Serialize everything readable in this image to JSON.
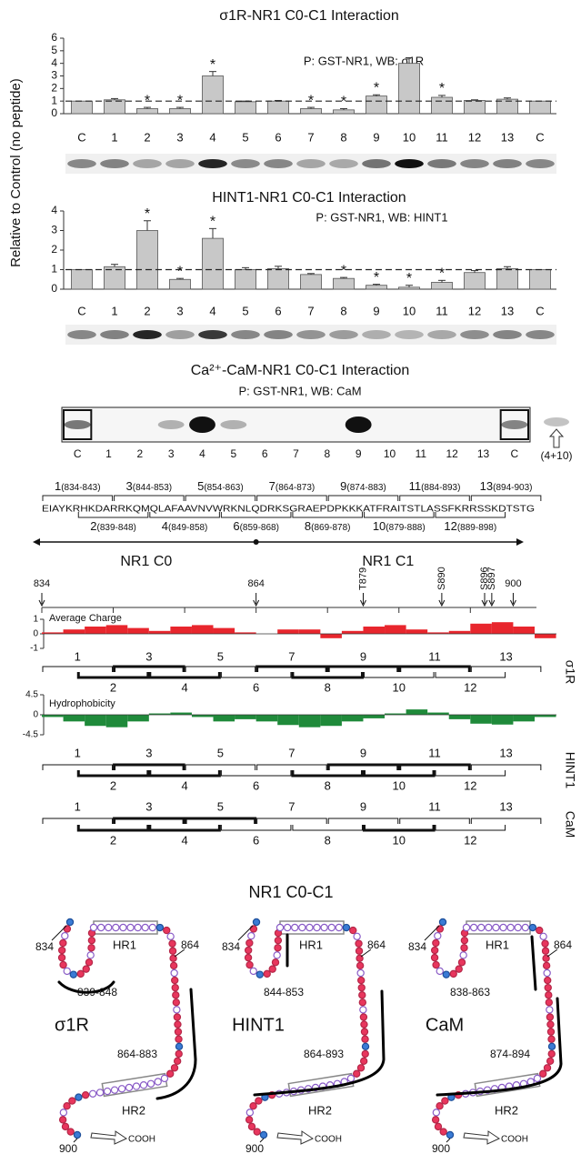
{
  "chart_data": [
    {
      "type": "bar",
      "title": "σ1R-NR1 C0-C1 Interaction",
      "subtitle": "P: GST-NR1, WB: σ1R",
      "ylabel": "Relative to Control (no peptide)",
      "categories": [
        "C",
        "1",
        "2",
        "3",
        "4",
        "5",
        "6",
        "7",
        "8",
        "9",
        "10",
        "11",
        "12",
        "13",
        "C"
      ],
      "values": [
        1,
        1.1,
        0.4,
        0.4,
        3.0,
        0.95,
        1.0,
        0.4,
        0.3,
        1.4,
        4.0,
        1.3,
        1.05,
        1.15,
        1
      ],
      "errors": [
        0,
        0.1,
        0.1,
        0.1,
        0.35,
        0.05,
        0.05,
        0.1,
        0.1,
        0.1,
        0.45,
        0.15,
        0.05,
        0.1,
        0
      ],
      "significant": [
        false,
        false,
        true,
        true,
        true,
        false,
        false,
        true,
        true,
        true,
        false,
        true,
        false,
        false,
        false
      ],
      "sig_mark": "*",
      "reference_line": 1,
      "color": "#c8c8c8",
      "ylim": [
        0,
        6
      ],
      "yticks": [
        0,
        1,
        2,
        3,
        4,
        5,
        6
      ]
    },
    {
      "type": "bar",
      "title": "HINT1-NR1 C0-C1 Interaction",
      "subtitle": "P: GST-NR1, WB: HINT1",
      "categories": [
        "C",
        "1",
        "2",
        "3",
        "4",
        "5",
        "6",
        "7",
        "8",
        "9",
        "10",
        "11",
        "12",
        "13",
        "C"
      ],
      "values": [
        1,
        1.15,
        3.0,
        0.5,
        2.6,
        1.0,
        1.05,
        0.75,
        0.55,
        0.2,
        0.1,
        0.35,
        0.85,
        1.05,
        1
      ],
      "errors": [
        0,
        0.12,
        0.5,
        0.05,
        0.5,
        0.1,
        0.12,
        0.05,
        0.05,
        0.05,
        0.1,
        0.1,
        0.1,
        0.1,
        0
      ],
      "significant": [
        false,
        false,
        true,
        true,
        true,
        false,
        false,
        false,
        true,
        true,
        true,
        true,
        false,
        false,
        false
      ],
      "sig_mark": "*",
      "reference_line": 1,
      "color": "#c8c8c8",
      "ylim": [
        0,
        4
      ],
      "yticks": [
        0,
        1,
        2,
        3,
        4
      ]
    },
    {
      "type": "bar",
      "title": "Average Charge",
      "x": [
        834,
        837,
        840,
        843,
        846,
        849,
        852,
        855,
        858,
        861,
        864,
        867,
        870,
        873,
        876,
        879,
        882,
        885,
        888,
        891,
        894,
        897,
        900,
        903
      ],
      "values": [
        0.1,
        0.3,
        0.5,
        0.6,
        0.4,
        0.2,
        0.5,
        0.6,
        0.4,
        0.1,
        0,
        0.3,
        0.3,
        -0.3,
        0.2,
        0.5,
        0.6,
        0.3,
        0.1,
        0.2,
        0.7,
        0.8,
        0.5,
        -0.3
      ],
      "color": "#e8262d",
      "xlim": [
        834,
        903
      ],
      "xticks": [
        834,
        864,
        {
          "value": 879,
          "label": "T879"
        },
        {
          "value": 890,
          "label": "S890"
        },
        {
          "value": 896,
          "label": "S896"
        },
        {
          "value": 897,
          "label": "S897"
        },
        900
      ],
      "ylim": [
        -1,
        1
      ],
      "yticks": [
        -1,
        0,
        1
      ]
    },
    {
      "type": "bar",
      "title": "Hydrophobicity",
      "x": [
        834,
        837,
        840,
        843,
        846,
        849,
        852,
        855,
        858,
        861,
        864,
        867,
        870,
        873,
        876,
        879,
        882,
        885,
        888,
        891,
        894,
        897,
        900,
        903
      ],
      "values": [
        -0.5,
        -1.5,
        -2.5,
        -2.8,
        -1.5,
        0.3,
        0.5,
        -0.5,
        -1.5,
        -1.0,
        -1.5,
        -2.3,
        -2.8,
        -2.5,
        -1.5,
        -0.8,
        0.3,
        1.2,
        0.5,
        -1.0,
        -2.0,
        -2.2,
        -1.5,
        -0.5
      ],
      "color": "#1f8a3a",
      "xlim": [
        834,
        903
      ],
      "ylim": [
        -4.5,
        4.5
      ],
      "yticks": [
        -4.5,
        0,
        4.5
      ]
    }
  ],
  "cam_blot": {
    "title": "Ca²⁺-CaM-NR1 C0-C1 Interaction",
    "subtitle": "P: GST-NR1, WB: CaM",
    "lanes": [
      "C",
      "1",
      "2",
      "3",
      "4",
      "5",
      "6",
      "7",
      "8",
      "9",
      "10",
      "11",
      "12",
      "13",
      "C"
    ],
    "extra_lane": "(4+10)"
  },
  "sequence": {
    "residues": "EIAYKRHKDARRKQMQLAFAAVNVWRKNLQDRKSGRAEPDPKKKATFRAITSTLASSFKRRSSKDTSTG",
    "peptides": [
      {
        "label": "1",
        "range": "(834-843)"
      },
      {
        "label": "2",
        "range": "(839-848)"
      },
      {
        "label": "3",
        "range": "(844-853)"
      },
      {
        "label": "4",
        "range": "(849-858)"
      },
      {
        "label": "5",
        "range": "(854-863)"
      },
      {
        "label": "6",
        "range": "(859-868)"
      },
      {
        "label": "7",
        "range": "(864-873)"
      },
      {
        "label": "8",
        "range": "(869-878)"
      },
      {
        "label": "9",
        "range": "(874-883)"
      },
      {
        "label": "10",
        "range": "(879-888)"
      },
      {
        "label": "11",
        "range": "(884-893)"
      },
      {
        "label": "12",
        "range": "(889-898)"
      },
      {
        "label": "13",
        "range": "(894-903)"
      }
    ],
    "domains": [
      "NR1 C0",
      "NR1 C1"
    ]
  },
  "binding": [
    {
      "name": "σ1R",
      "bound": [
        false,
        true,
        true,
        true,
        false,
        false,
        true,
        true,
        true,
        false,
        true,
        false,
        false
      ]
    },
    {
      "name": "HINT1",
      "bound": [
        false,
        true,
        true,
        true,
        false,
        false,
        false,
        true,
        true,
        true,
        true,
        false,
        false
      ]
    },
    {
      "name": "CaM",
      "bound": [
        false,
        true,
        true,
        true,
        true,
        false,
        false,
        false,
        false,
        true,
        false,
        false,
        false
      ]
    }
  ],
  "models": {
    "title": "NR1 C0-C1",
    "panels": [
      {
        "name": "σ1R",
        "start": "834",
        "hr1": "HR1",
        "range1": "839-848",
        "mid": "864",
        "range2": "864-883",
        "hr2": "HR2",
        "end": "900",
        "cooh": "COOH"
      },
      {
        "name": "HINT1",
        "start": "834",
        "hr1": "HR1",
        "range1": "844-853",
        "mid": "864",
        "range2": "864-893",
        "hr2": "HR2",
        "end": "900",
        "cooh": "COOH"
      },
      {
        "name": "CaM",
        "start": "834",
        "hr1": "HR1",
        "range1": "838-863",
        "mid": "864",
        "range2": "874-894",
        "hr2": "HR2",
        "end": "900",
        "cooh": "COOH"
      }
    ]
  }
}
